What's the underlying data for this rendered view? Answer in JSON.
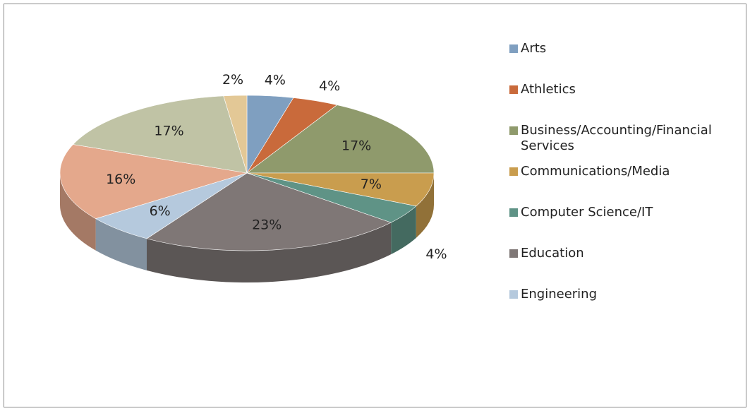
{
  "chart_data": {
    "type": "pie",
    "categories": [
      "Arts",
      "Athletics",
      "Business/Accounting/Financial Services",
      "Communications/Media",
      "Computer Science/IT",
      "Education",
      "Engineering",
      null,
      null,
      null
    ],
    "values": [
      4,
      4,
      17,
      7,
      4,
      23,
      6,
      16,
      17,
      2
    ],
    "value_labels": [
      "4%",
      "4%",
      "17%",
      "7%",
      "4%",
      "23%",
      "6%",
      "16%",
      "17%",
      "2%"
    ],
    "colors": [
      "#7f9fc0",
      "#c96a3b",
      "#8f9a6c",
      "#c99d4e",
      "#5f9386",
      "#7f7776",
      "#b5c9dd",
      "#e4a88c",
      "#c0c3a5",
      "#e3c896"
    ],
    "legend": "right"
  }
}
